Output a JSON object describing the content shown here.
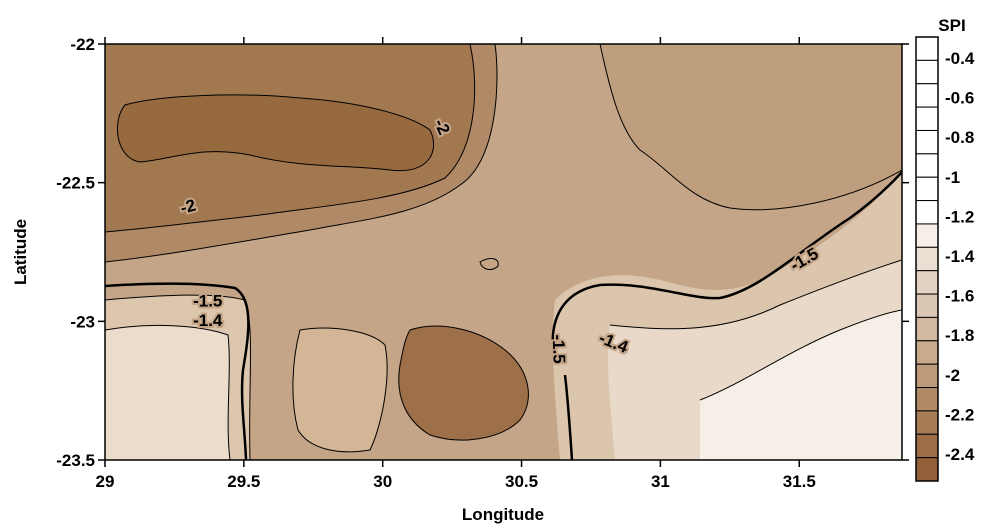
{
  "chart_data": {
    "type": "contour",
    "xlabel": "Longitude",
    "ylabel": "Latitude",
    "xlim": [
      29,
      31.87
    ],
    "ylim": [
      -23.5,
      -22
    ],
    "x_ticks": [
      29,
      29.5,
      30,
      30.5,
      31,
      31.5
    ],
    "x_tick_labels": [
      "29",
      "29.5",
      "30",
      "30.5",
      "31",
      "31.5"
    ],
    "y_ticks": [
      -22,
      -22.5,
      -23,
      -23.5
    ],
    "y_tick_labels": [
      "-22",
      "-22.5",
      "-23",
      "-23.5"
    ],
    "colorbar": {
      "title": "SPI",
      "levels": [
        -0.4,
        -0.6,
        -0.8,
        -1,
        -1.2,
        -1.4,
        -1.6,
        -1.8,
        -2,
        -2.2,
        -2.4
      ],
      "labels": [
        "-0.4",
        "-0.6",
        "-0.8",
        "-1",
        "-1.2",
        "-1.4",
        "-1.6",
        "-1.8",
        "-2",
        "-2.2",
        "-2.4"
      ],
      "colors": [
        "#ffffff",
        "#ffffff",
        "#ffffff",
        "#ffffff",
        "#ffffff",
        "#ffffff",
        "#ffffff",
        "#ffffff",
        "#f5efe8",
        "#eadfd3",
        "#e3d3c3",
        "#dbc7b4",
        "#d1b8a0",
        "#c8aa8c",
        "#bd9a78",
        "#b28b66",
        "#a77c56",
        "#9c6d46",
        "#925f38"
      ]
    },
    "contour_labels": [
      {
        "text": "-2",
        "lon": 30.21,
        "lat": -22.3,
        "angle": 65
      },
      {
        "text": "-2",
        "lon": 29.3,
        "lat": -22.59,
        "angle": -15
      },
      {
        "text": "-1.5",
        "lon": 29.37,
        "lat": -22.93,
        "angle": 0
      },
      {
        "text": "-1.4",
        "lon": 29.37,
        "lat": -23.0,
        "angle": 0
      },
      {
        "text": "-1.5",
        "lon": 30.63,
        "lat": -23.1,
        "angle": 88
      },
      {
        "text": "-1.4",
        "lon": 30.83,
        "lat": -23.08,
        "angle": 22
      },
      {
        "text": "-1.5",
        "lon": 31.52,
        "lat": -22.78,
        "angle": -30
      }
    ],
    "emphasized_isolines": [
      -1.5
    ]
  }
}
